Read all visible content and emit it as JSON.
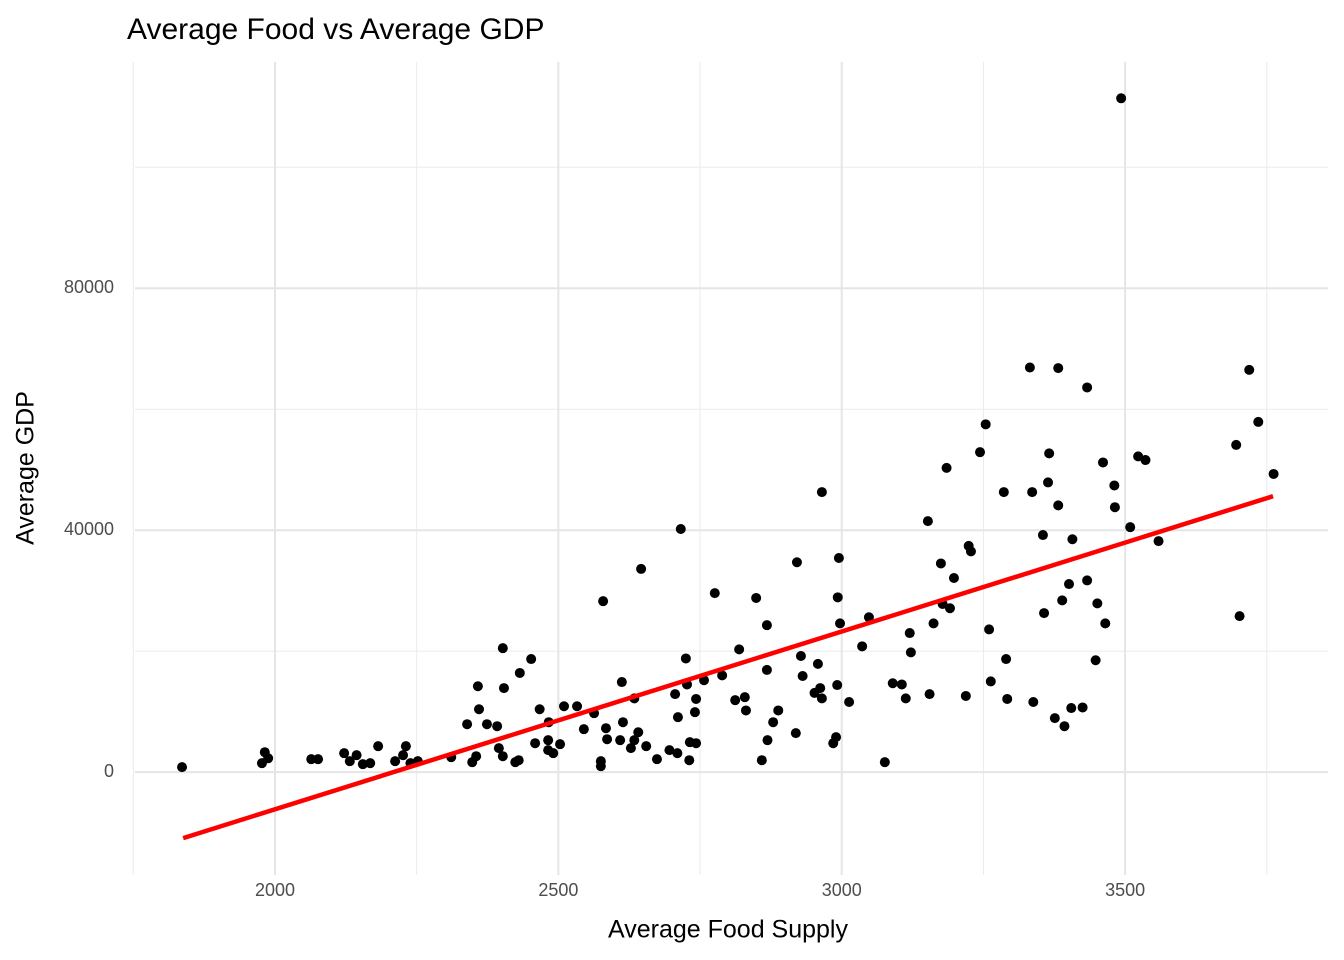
{
  "chart_data": {
    "type": "scatter",
    "title": "Average Food vs Average GDP",
    "x_label": "Average Food Supply",
    "y_label": "Average GDP",
    "xlim": [
      1753,
      3858
    ],
    "ylim": [
      -17000,
      117400
    ],
    "xticks": [
      2000,
      2500,
      3000,
      3500
    ],
    "yticks": [
      0,
      40000,
      80000
    ],
    "minor_xticks": [
      1750,
      2250,
      2750,
      3250,
      3750
    ],
    "minor_yticks": [
      20000,
      60000,
      100000
    ],
    "grid": true,
    "color": "#000000",
    "x": [
      1836,
      1977,
      1982,
      1988,
      2064,
      2076,
      2122,
      2132,
      2144,
      2155,
      2168,
      2182,
      2212,
      2226,
      2231,
      2239,
      2252,
      2311,
      2339,
      2348,
      2355,
      2358,
      2360,
      2374,
      2392,
      2395,
      2402,
      2404,
      2402,
      2424,
      2430,
      2432,
      2452,
      2459,
      2467,
      2482,
      2483,
      2482,
      2491,
      2503,
      2510,
      2533,
      2545,
      2563,
      2575,
      2575,
      2579,
      2584,
      2586,
      2609,
      2612,
      2614,
      2628,
      2634,
      2634,
      2641,
      2646,
      2655,
      2674,
      2696,
      2706,
      2710,
      2711,
      2716,
      2725,
      2727,
      2731,
      2732,
      2743,
      2741,
      2743,
      2757,
      2776,
      2789,
      2812,
      2819,
      2829,
      2831,
      2849,
      2859,
      2868,
      2869,
      2868,
      2879,
      2888,
      2919,
      2921,
      2928,
      2931,
      2952,
      2958,
      2962,
      2965,
      2965,
      2985,
      2990,
      2992,
      2993,
      2995,
      2997,
      3013,
      3036,
      3048,
      3076,
      3090,
      3106,
      3113,
      3120,
      3122,
      3152,
      3155,
      3162,
      3175,
      3178,
      3185,
      3191,
      3198,
      3219,
      3224,
      3228,
      3244,
      3254,
      3260,
      3263,
      3286,
      3290,
      3292,
      3332,
      3336,
      3338,
      3355,
      3357,
      3364,
      3366,
      3376,
      3382,
      3382,
      3389,
      3393,
      3401,
      3405,
      3407,
      3425,
      3433,
      3433,
      3448,
      3451,
      3461,
      3465,
      3481,
      3482,
      3493,
      3509,
      3523,
      3536,
      3559,
      3696,
      3702,
      3719,
      3735,
      3762
    ],
    "values": [
      830,
      1490,
      3300,
      2300,
      2150,
      2150,
      3140,
      1820,
      2810,
      1320,
      1490,
      4300,
      1820,
      2810,
      4300,
      1490,
      1820,
      2480,
      7930,
      1650,
      2640,
      14200,
      10400,
      7930,
      7600,
      3970,
      20500,
      13900,
      2640,
      1650,
      1980,
      16400,
      18700,
      4790,
      10400,
      5290,
      8260,
      3640,
      3140,
      4630,
      10900,
      10900,
      7110,
      9750,
      1820,
      990,
      28270,
      7270,
      5450,
      5290,
      14900,
      8260,
      3970,
      12200,
      5290,
      6600,
      33600,
      4300,
      2150,
      3640,
      12900,
      3140,
      9090,
      40200,
      18800,
      14500,
      1980,
      4960,
      4790,
      9920,
      12100,
      15200,
      29600,
      16000,
      11900,
      20300,
      12400,
      10200,
      28800,
      1980,
      24300,
      5290,
      16900,
      8260,
      10200,
      6450,
      34700,
      19200,
      15900,
      13100,
      17900,
      13900,
      46300,
      12200,
      4790,
      5790,
      14400,
      28900,
      35400,
      24600,
      11600,
      20800,
      25600,
      1650,
      14700,
      14500,
      12200,
      23000,
      19800,
      41500,
      12900,
      24600,
      34500,
      27800,
      50300,
      27100,
      32100,
      12600,
      37400,
      36500,
      52900,
      57500,
      23600,
      15000,
      46300,
      18700,
      12100,
      66900,
      46300,
      11600,
      39200,
      26300,
      47900,
      52700,
      8930,
      66800,
      44100,
      28400,
      7600,
      31100,
      10600,
      38500,
      10700,
      63600,
      31700,
      18500,
      27900,
      51200,
      24600,
      47400,
      43800,
      111400,
      40500,
      52200,
      51600,
      38200,
      54100,
      25800,
      66500,
      57900,
      49300
    ],
    "fit": {
      "x": [
        1838,
        3761
      ],
      "values": [
        -10900,
        45620
      ],
      "color": "#ff0000"
    }
  }
}
